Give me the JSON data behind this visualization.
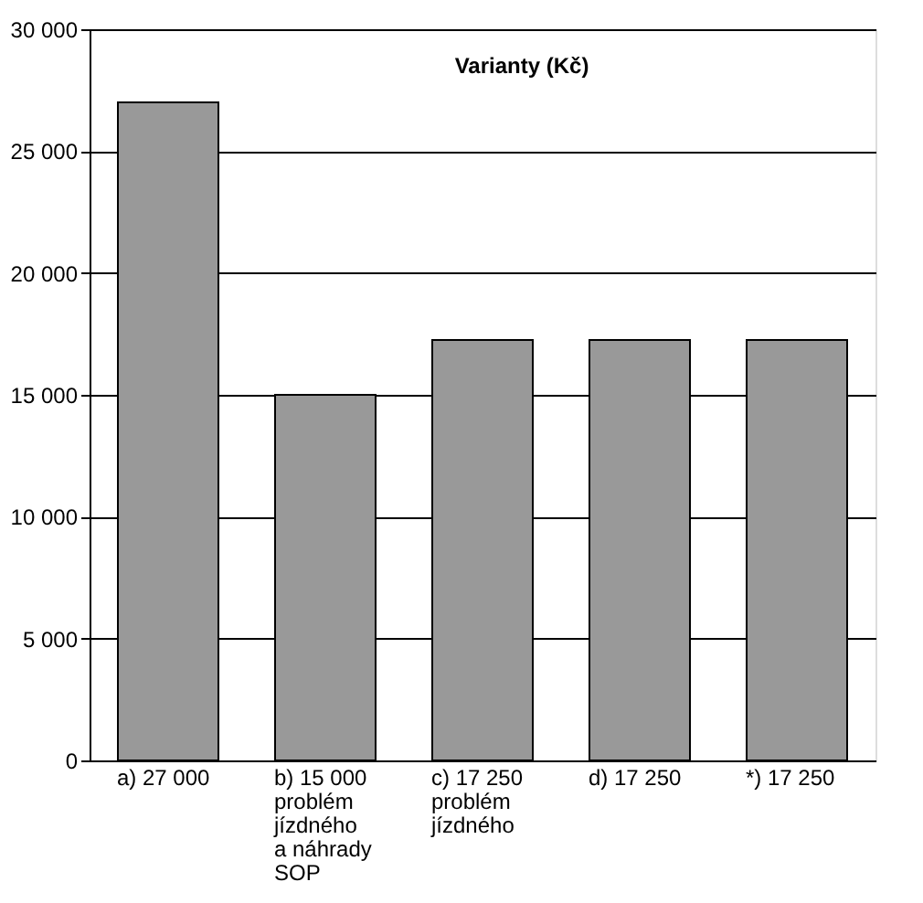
{
  "chart_data": {
    "type": "bar",
    "title": "Varianty (Kč)",
    "categories": [
      "a) 27 000",
      "b) 15 000\nproblém\njízdného\na náhrady\nSOP",
      "c) 17 250\nproblém\njízdného",
      "d) 17 250",
      "*) 17 250"
    ],
    "values": [
      27000,
      15000,
      17250,
      17250,
      17250
    ],
    "color": "#999999",
    "ylim": [
      0,
      30000
    ],
    "yticks": [
      {
        "value": 0,
        "label": "0"
      },
      {
        "value": 5000,
        "label": "5 000"
      },
      {
        "value": 10000,
        "label": "10 000"
      },
      {
        "value": 15000,
        "label": "15 000"
      },
      {
        "value": 20000,
        "label": "20 000"
      },
      {
        "value": 25000,
        "label": "25 000"
      },
      {
        "value": 30000,
        "label": "30 000"
      }
    ],
    "grid": "y"
  }
}
